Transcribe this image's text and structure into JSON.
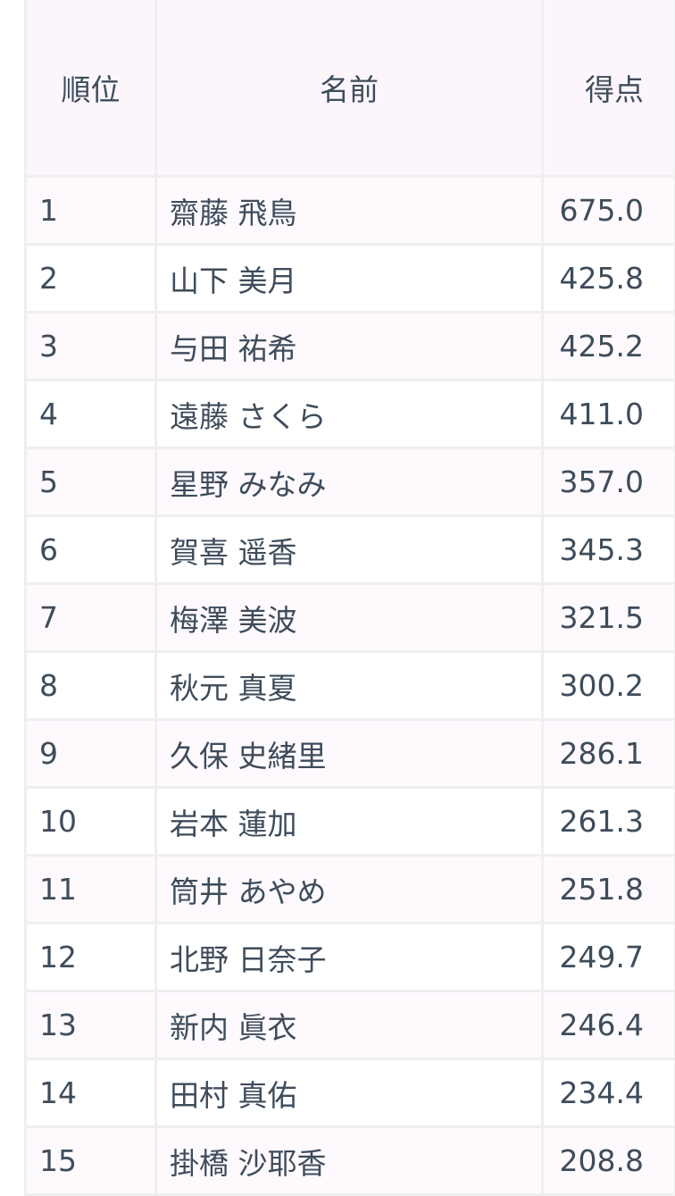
{
  "table": {
    "headers": [
      "順位",
      "名前",
      "得点"
    ],
    "rows": [
      {
        "rank": "1",
        "name": "齋藤 飛鳥",
        "score": "675.0"
      },
      {
        "rank": "2",
        "name": "山下 美月",
        "score": "425.8"
      },
      {
        "rank": "3",
        "name": "与田 祐希",
        "score": "425.2"
      },
      {
        "rank": "4",
        "name": "遠藤 さくら",
        "score": "411.0"
      },
      {
        "rank": "5",
        "name": "星野 みなみ",
        "score": "357.0"
      },
      {
        "rank": "6",
        "name": "賀喜 遥香",
        "score": "345.3"
      },
      {
        "rank": "7",
        "name": "梅澤 美波",
        "score": "321.5"
      },
      {
        "rank": "8",
        "name": "秋元 真夏",
        "score": "300.2"
      },
      {
        "rank": "9",
        "name": "久保 史緒里",
        "score": "286.1"
      },
      {
        "rank": "10",
        "name": "岩本 蓮加",
        "score": "261.3"
      },
      {
        "rank": "11",
        "name": "筒井 あやめ",
        "score": "251.8"
      },
      {
        "rank": "12",
        "name": "北野 日奈子",
        "score": "249.7"
      },
      {
        "rank": "13",
        "name": "新内 眞衣",
        "score": "246.4"
      },
      {
        "rank": "14",
        "name": "田村 真佑",
        "score": "234.4"
      },
      {
        "rank": "15",
        "name": "掛橋 沙耶香",
        "score": "208.8"
      }
    ]
  },
  "colors": {
    "header_bg": "#fcf6fc",
    "odd_row_bg": "#fdf9fd",
    "even_row_bg": "#ffffff",
    "border": "#efeef0",
    "text": "#3e4c5b"
  }
}
